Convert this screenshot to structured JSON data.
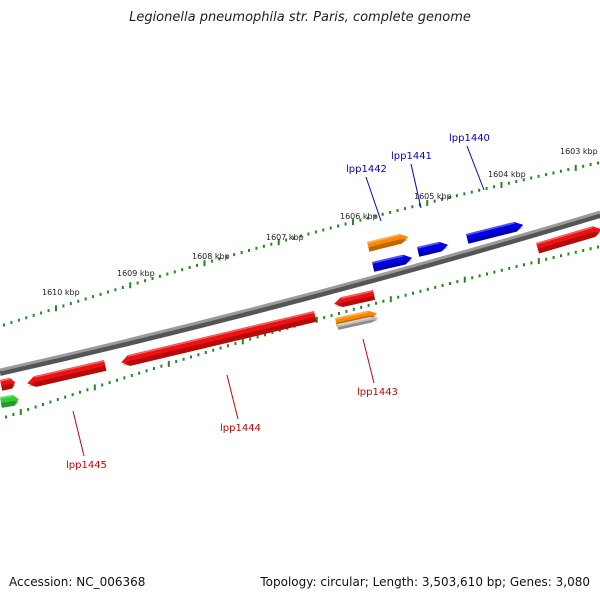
{
  "title": "Legionella pneumophila str. Paris, complete genome",
  "footer": {
    "accession": "Accession: NC_006368",
    "topology": "Topology: circular; Length: 3,503,610 bp; Genes: 3,080"
  },
  "ticks": [
    {
      "label": "1603 kbp"
    },
    {
      "label": "1604 kbp"
    },
    {
      "label": "1605 kbp"
    },
    {
      "label": "1606 kbp"
    },
    {
      "label": "1607 kbp"
    },
    {
      "label": "1608 kbp"
    },
    {
      "label": "1609 kbp"
    },
    {
      "label": "1610 kbp"
    }
  ],
  "gene_labels": [
    {
      "name": "lpp1440",
      "strand": "forward"
    },
    {
      "name": "lpp1441",
      "strand": "forward"
    },
    {
      "name": "lpp1442",
      "strand": "forward"
    },
    {
      "name": "lpp1443",
      "strand": "reverse"
    },
    {
      "name": "lpp1444",
      "strand": "reverse"
    },
    {
      "name": "lpp1445",
      "strand": "reverse"
    }
  ],
  "colors": {
    "forward_label": "#0000cc",
    "reverse_label": "#cc0000",
    "backbone": "#808080",
    "ruler_ticks": "#228822",
    "gene_blue": "#0000ee",
    "gene_red": "#ee1111",
    "gene_orange": "#ff8800",
    "gene_green": "#33cc33",
    "gene_grey": "#bbbbbb"
  }
}
